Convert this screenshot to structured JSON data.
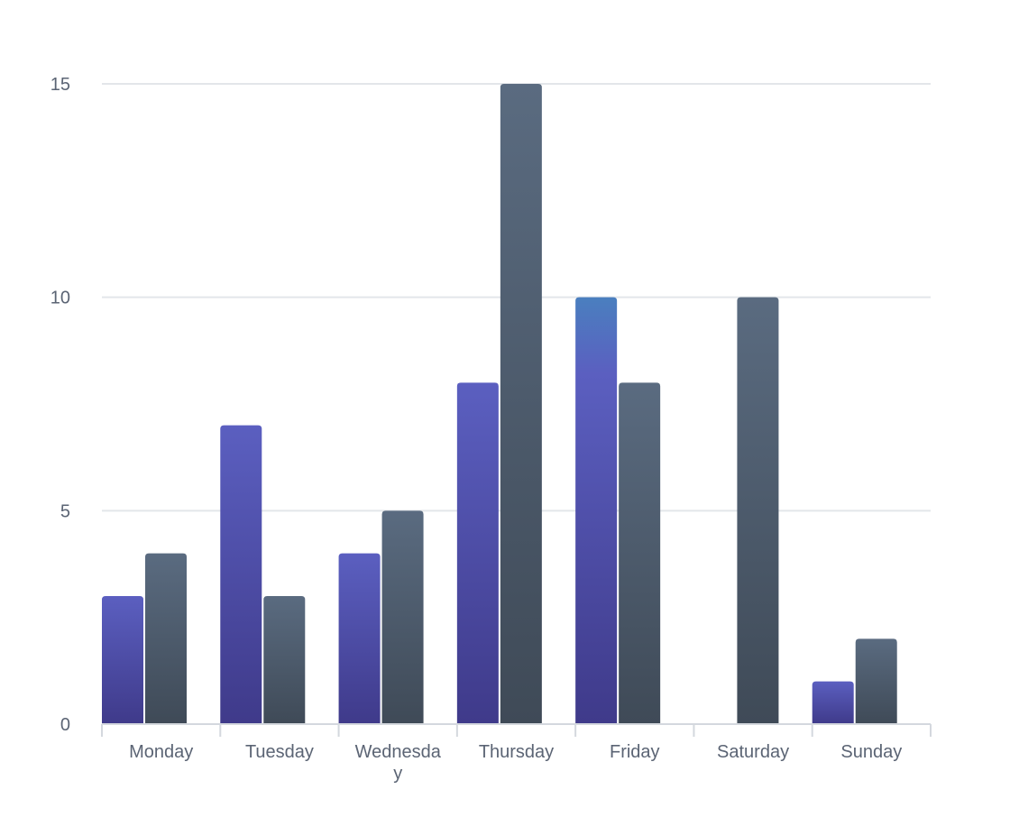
{
  "chart_data": {
    "type": "bar",
    "categories": [
      "Monday",
      "Tuesday",
      "Wednesday",
      "Thursday",
      "Friday",
      "Saturday",
      "Sunday"
    ],
    "category_label_lines": [
      [
        "Monday"
      ],
      [
        "Tuesday"
      ],
      [
        "Wednesda",
        "y"
      ],
      [
        "Thursday"
      ],
      [
        "Friday"
      ],
      [
        "Saturday"
      ],
      [
        "Sunday"
      ]
    ],
    "series": [
      {
        "values": [
          3,
          7,
          4,
          8,
          10,
          0,
          1
        ],
        "color_top": "#5b5fc0",
        "color_bottom": "#3f3a8a",
        "highlight_color": "#4a7fbf"
      },
      {
        "values": [
          4,
          3,
          5,
          15,
          8,
          10,
          2
        ],
        "color_top": "#5a6b80",
        "color_bottom": "#3f4a57"
      }
    ],
    "title": "",
    "xlabel": "",
    "ylabel": "",
    "ylim": [
      0,
      15
    ],
    "yticks": [
      0,
      5,
      10,
      15
    ],
    "grid": true,
    "legend": "none"
  }
}
